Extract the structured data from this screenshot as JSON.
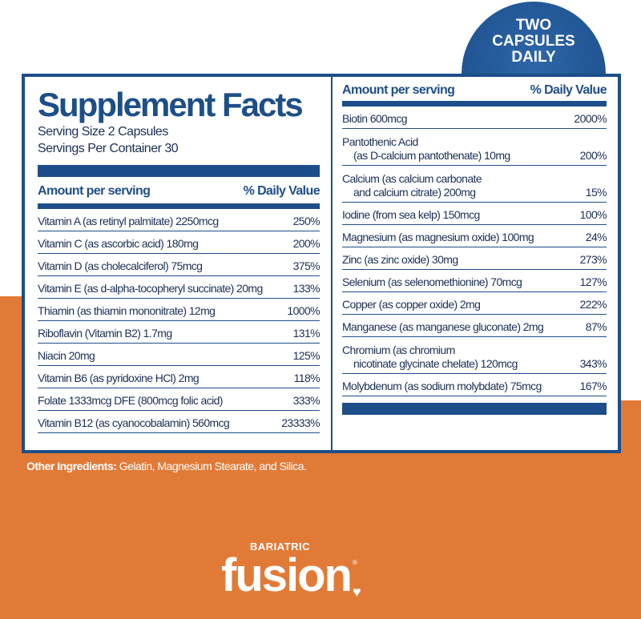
{
  "badge": {
    "line1": "TWO",
    "line2": "CAPSULES",
    "line3": "DAILY"
  },
  "title": "Supplement Facts",
  "serving_size": "Serving Size 2 Capsules",
  "servings_per_container": "Servings Per Container 30",
  "header": {
    "amount": "Amount per serving",
    "dv": "% Daily Value"
  },
  "left_rows": [
    {
      "name": "Vitamin A (as retinyl palmitate) 2250mcg",
      "dv": "250%"
    },
    {
      "name": "Vitamin C (as ascorbic acid) 180mg",
      "dv": "200%"
    },
    {
      "name": "Vitamin D (as cholecalciferol) 75mcg",
      "dv": "375%"
    },
    {
      "name": "Vitamin E (as d-alpha-tocopheryl succinate) 20mg",
      "dv": "133%"
    },
    {
      "name": "Thiamin (as thiamin mononitrate) 12mg",
      "dv": "1000%"
    },
    {
      "name": "Riboflavin (Vitamin B2) 1.7mg",
      "dv": "131%"
    },
    {
      "name": "Niacin 20mg",
      "dv": "125%"
    },
    {
      "name": "Vitamin B6 (as pyridoxine HCl) 2mg",
      "dv": "118%"
    },
    {
      "name": "Folate 1333mcg DFE (800mcg folic acid)",
      "dv": "333%"
    },
    {
      "name": "Vitamin B12 (as cyanocobalamin) 560mcg",
      "dv": "23333%"
    }
  ],
  "right_rows": [
    {
      "name": "Biotin 600mcg",
      "dv": "2000%"
    },
    {
      "name": "Pantothenic Acid",
      "sub": "(as D-calcium pantothenate) 10mg",
      "dv": "200%"
    },
    {
      "name": "Calcium (as calcium carbonate",
      "sub": "and calcium citrate) 200mg",
      "dv": "15%"
    },
    {
      "name": "Iodine (from sea kelp) 150mcg",
      "dv": "100%"
    },
    {
      "name": "Magnesium (as magnesium oxide) 100mg",
      "dv": "24%"
    },
    {
      "name": "Zinc (as zinc oxide) 30mg",
      "dv": "273%"
    },
    {
      "name": "Selenium (as selenomethionine) 70mcg",
      "dv": "127%"
    },
    {
      "name": "Copper (as copper oxide) 2mg",
      "dv": "222%"
    },
    {
      "name": "Manganese (as manganese gluconate) 2mg",
      "dv": "87%"
    },
    {
      "name": "Chromium (as chromium",
      "sub": "nicotinate glycinate chelate) 120mcg",
      "dv": "343%"
    },
    {
      "name": "Molybdenum (as sodium molybdate) 75mcg",
      "dv": "167%"
    }
  ],
  "other_ingredients": {
    "label": "Other Ingredients:",
    "value": "Gelatin, Magnesium Stearate, and Silica."
  },
  "brand": {
    "small": "BARIATRIC",
    "name": "fusion"
  },
  "colors": {
    "navy": "#1d4e89",
    "orange": "#e27a37"
  }
}
